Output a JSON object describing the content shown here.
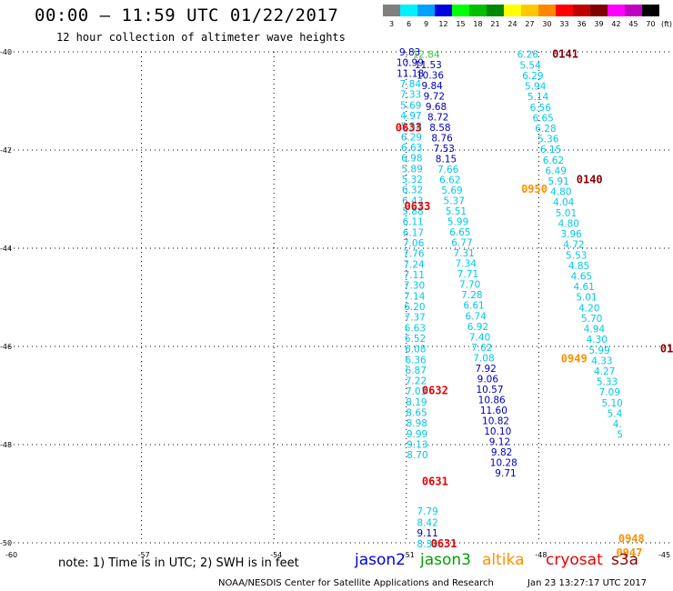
{
  "header": {
    "title": "00:00 – 11:59 UTC 01/22/2017",
    "subtitle": "12 hour collection of altimeter wave heights"
  },
  "legend": {
    "unit": "(ft)",
    "bins": [
      {
        "label": "3",
        "color": "#7f7f7f"
      },
      {
        "label": "6",
        "color": "#00f0ff"
      },
      {
        "label": "9",
        "color": "#00a0ff"
      },
      {
        "label": "12",
        "color": "#0000e0"
      },
      {
        "label": "15",
        "color": "#00ff00"
      },
      {
        "label": "18",
        "color": "#00c000"
      },
      {
        "label": "21",
        "color": "#008800"
      },
      {
        "label": "24",
        "color": "#ffff00"
      },
      {
        "label": "27",
        "color": "#ffc800"
      },
      {
        "label": "30",
        "color": "#ff8800"
      },
      {
        "label": "33",
        "color": "#ff0000"
      },
      {
        "label": "36",
        "color": "#c00000"
      },
      {
        "label": "39",
        "color": "#800000"
      },
      {
        "label": "42",
        "color": "#ff00ff"
      },
      {
        "label": "45",
        "color": "#c000c0"
      },
      {
        "label": "70",
        "color": "#000000"
      }
    ]
  },
  "map": {
    "lon_ticks": [
      {
        "value": -60,
        "label": "-60"
      },
      {
        "value": -57,
        "label": "-57"
      },
      {
        "value": -54,
        "label": "-54"
      },
      {
        "value": -51,
        "label": "-51"
      },
      {
        "value": -48,
        "label": "-48"
      },
      {
        "value": -45,
        "label": "-45"
      }
    ],
    "lat_ticks": [
      {
        "value": -40,
        "label": "-40"
      },
      {
        "value": -42,
        "label": "-42"
      },
      {
        "value": -44,
        "label": "-44"
      },
      {
        "value": -46,
        "label": "-46"
      },
      {
        "value": -48,
        "label": "-48"
      },
      {
        "value": -50,
        "label": "-50"
      }
    ],
    "colors": {
      "cyan": "#00c8e6",
      "navy": "#0000b4",
      "green": "#40c040",
      "red": "#e60000",
      "maroon": "#8b0000",
      "orange": "#ff9000"
    },
    "tracks": [
      {
        "lon": -50.92,
        "lat_start": -40.0,
        "lat_step": -0.216,
        "color": "cyan",
        "nav_override": [
          0,
          1,
          2
        ],
        "values": [
          "9.83",
          "10.99",
          "11.18",
          "7.84",
          "7.33",
          "5.69",
          "4.97",
          "5.58",
          "6.29",
          "6.63",
          "6.98",
          "5.89",
          "5.32",
          "6.32",
          "6.43",
          "5.88",
          "6.11",
          "6.17",
          "7.06",
          "7.76",
          "7.24",
          "7.11",
          "7.30",
          "7.14",
          "6.20",
          "7.37",
          "6.63",
          "6.52",
          "6.08",
          "6.36",
          "6.87",
          "7.22",
          "7.03",
          "8.19",
          "8.65",
          "8.98",
          "9.99",
          "9.13",
          "8.70"
        ]
      },
      {
        "lon": -50.55,
        "lat_start": -40.05,
        "lat_step": -0.213,
        "color": "navy",
        "values": [
          "12.84",
          "11.53",
          "10.36",
          "9.84",
          "9.72",
          "9.68",
          "8.72",
          "8.58",
          "8.76",
          "7.53",
          "8.15",
          "7.66",
          "6.62",
          "5.69",
          "5.37",
          "5.51",
          "5.99",
          "6.65",
          "6.77",
          "7.31",
          "7.34",
          "7.71",
          "7.70",
          "7.28",
          "6.61",
          "6.74",
          "6.92",
          "7.40",
          "7.62",
          "7.08",
          "7.92",
          "9.06",
          "10.57",
          "10.86",
          "11.60",
          "10.82",
          "10.10",
          "9.12",
          "9.82",
          "10.28",
          "9.71"
        ]
      },
      {
        "lon": -48.25,
        "lat_start": -40.05,
        "lat_step": -0.215,
        "color": "cyan",
        "values": [
          "6.26",
          "5.54",
          "6.29",
          "5.94",
          "5.14",
          "6.56",
          "6.65",
          "6.28",
          "5.36",
          "6.15",
          "6.62",
          "6.49",
          "5.91",
          "4.80",
          "4.04",
          "5.01",
          "4.80",
          "3.96",
          "4.72",
          "5.53",
          "4.85",
          "4.65",
          "4.61",
          "5.01",
          "4.20",
          "5.70",
          "4.94",
          "4.30",
          "5.99",
          "4.33",
          "4.27",
          "5.33",
          "7.09",
          "5.10",
          "5.4",
          "4.",
          "5"
        ]
      }
    ],
    "extra_values": [
      {
        "lon": -50.52,
        "lat": -49.35,
        "text": "7.79",
        "color": "cyan"
      },
      {
        "lon": -50.52,
        "lat": -49.58,
        "text": "8.42",
        "color": "cyan"
      },
      {
        "lon": -50.52,
        "lat": -49.8,
        "text": "9.11",
        "color": "navy"
      },
      {
        "lon": -50.52,
        "lat": -50.02,
        "text": "8.33",
        "color": "cyan"
      }
    ],
    "time_labels": [
      {
        "lon": -47.4,
        "lat": -40.05,
        "text": "0141",
        "color": "maroon"
      },
      {
        "lon": -50.95,
        "lat": -41.55,
        "text": "0633",
        "color": "red"
      },
      {
        "lon": -48.1,
        "lat": -42.8,
        "text": "0950",
        "color": "orange"
      },
      {
        "lon": -46.85,
        "lat": -42.6,
        "text": "0140",
        "color": "maroon"
      },
      {
        "lon": -50.75,
        "lat": -43.15,
        "text": "0633",
        "color": "red"
      },
      {
        "lon": -45.1,
        "lat": -46.05,
        "text": "01",
        "color": "maroon"
      },
      {
        "lon": -47.2,
        "lat": -46.25,
        "text": "0949",
        "color": "orange"
      },
      {
        "lon": -50.35,
        "lat": -46.9,
        "text": "0632",
        "color": "red"
      },
      {
        "lon": -50.35,
        "lat": -48.75,
        "text": "0631",
        "color": "red"
      },
      {
        "lon": -50.15,
        "lat": -50.02,
        "text": "0631",
        "color": "red"
      },
      {
        "lon": -45.9,
        "lat": -49.92,
        "text": "0948",
        "color": "orange"
      },
      {
        "lon": -45.95,
        "lat": -50.2,
        "text": "0947",
        "color": "orange"
      }
    ]
  },
  "footer": {
    "note": "note: 1) Time is in UTC; 2) SWH is in feet",
    "satellites": [
      {
        "name": "jason2",
        "color": "#0000e0"
      },
      {
        "name": "jason3",
        "color": "#00a000"
      },
      {
        "name": "altika",
        "color": "#ff9000"
      },
      {
        "name": "cryosat",
        "color": "#e60000"
      },
      {
        "name": "s3a",
        "color": "#8b0000"
      }
    ],
    "credit": "NOAA/NESDIS Center for Satellite Applications and Research",
    "timestamp": "Jan 23 13:27:17 UTC 2017"
  }
}
